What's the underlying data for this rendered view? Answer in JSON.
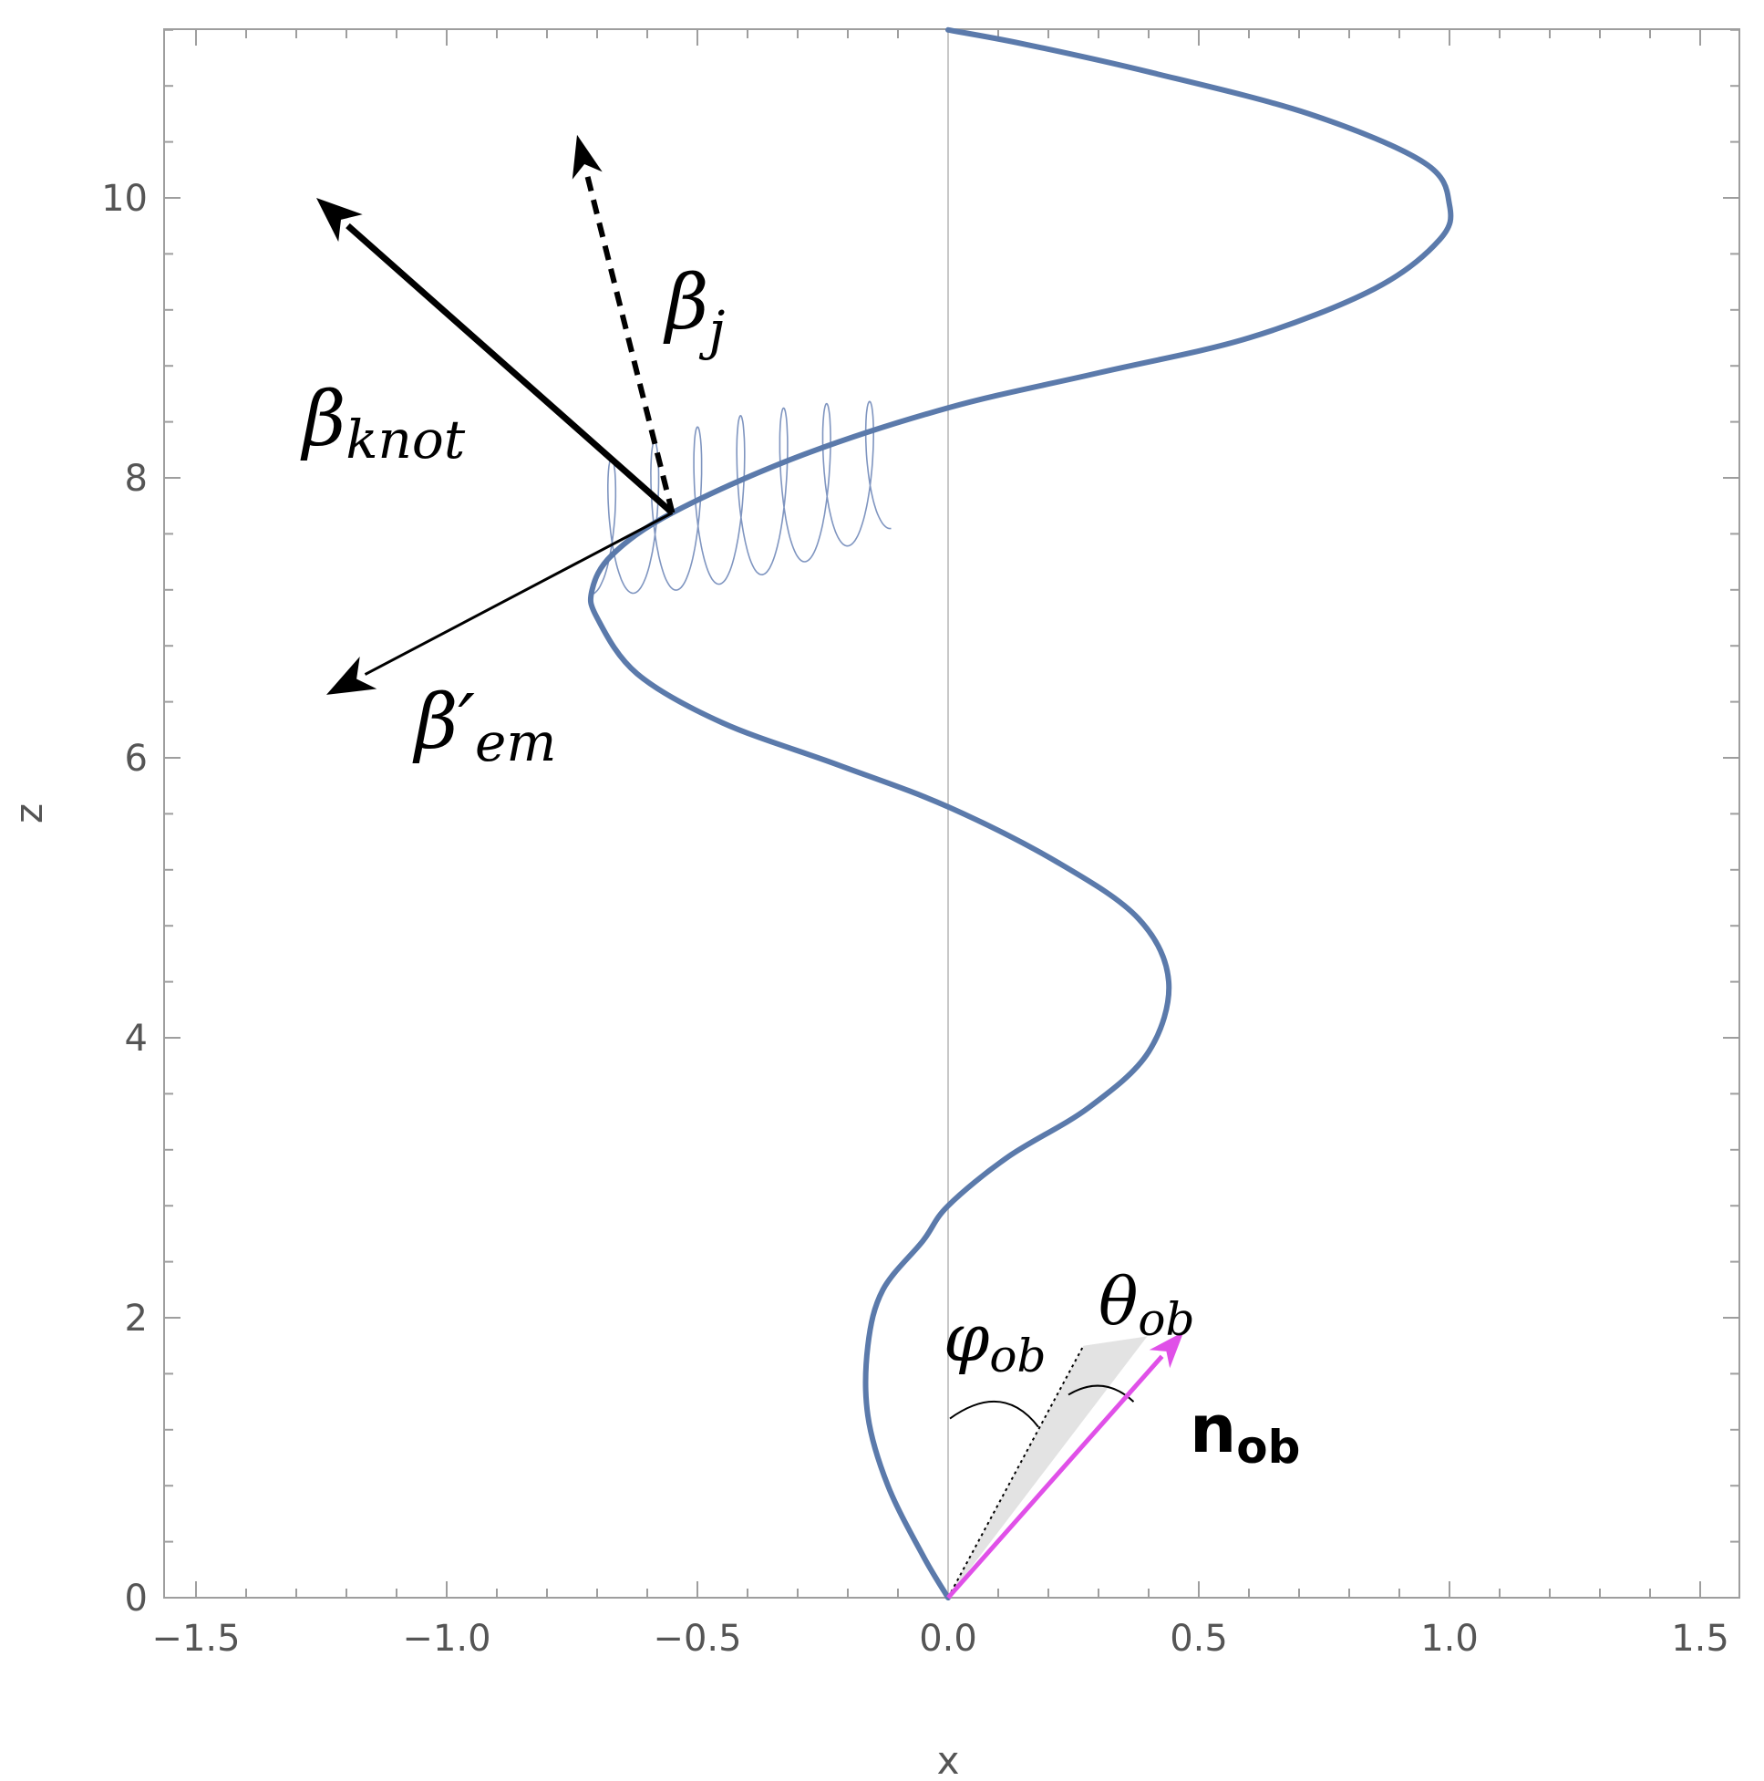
{
  "chart_data": {
    "type": "line",
    "xlabel": "x",
    "ylabel": "z",
    "xlim": [
      -1.5,
      1.5
    ],
    "ylim": [
      0,
      11.2
    ],
    "x_ticks": [
      {
        "value": -1.5,
        "label": "−1.5"
      },
      {
        "value": -1.0,
        "label": "−1.0"
      },
      {
        "value": -0.5,
        "label": "−0.5"
      },
      {
        "value": 0.0,
        "label": "0.0"
      },
      {
        "value": 0.5,
        "label": "0.5"
      },
      {
        "value": 1.0,
        "label": "1.0"
      },
      {
        "value": 1.5,
        "label": "1.5"
      }
    ],
    "y_ticks": [
      {
        "value": 0,
        "label": "0"
      },
      {
        "value": 2,
        "label": "2"
      },
      {
        "value": 4,
        "label": "4"
      },
      {
        "value": 6,
        "label": "6"
      },
      {
        "value": 8,
        "label": "8"
      },
      {
        "value": 10,
        "label": "10"
      }
    ],
    "grid": false,
    "series": [
      {
        "color": "#5b7aab",
        "points": [
          [
            0.0,
            0.0
          ],
          [
            -0.05,
            0.3
          ],
          [
            -0.12,
            0.8
          ],
          [
            -0.16,
            1.3
          ],
          [
            -0.16,
            1.8
          ],
          [
            -0.13,
            2.2
          ],
          [
            -0.05,
            2.55
          ],
          [
            0.0,
            2.8
          ],
          [
            0.12,
            3.15
          ],
          [
            0.28,
            3.5
          ],
          [
            0.4,
            3.9
          ],
          [
            0.44,
            4.4
          ],
          [
            0.38,
            4.85
          ],
          [
            0.22,
            5.25
          ],
          [
            0.0,
            5.65
          ],
          [
            -0.22,
            5.95
          ],
          [
            -0.45,
            6.25
          ],
          [
            -0.62,
            6.6
          ],
          [
            -0.7,
            7.0
          ],
          [
            -0.71,
            7.2
          ],
          [
            -0.67,
            7.45
          ],
          [
            -0.55,
            7.75
          ],
          [
            -0.3,
            8.15
          ],
          [
            0.0,
            8.5
          ],
          [
            0.3,
            8.75
          ],
          [
            0.6,
            9.0
          ],
          [
            0.85,
            9.35
          ],
          [
            0.98,
            9.7
          ],
          [
            1.0,
            9.95
          ],
          [
            0.95,
            10.25
          ],
          [
            0.72,
            10.6
          ],
          [
            0.4,
            10.9
          ],
          [
            0.15,
            11.1
          ],
          [
            0.0,
            11.2
          ]
        ]
      }
    ],
    "annotations": [
      {
        "label": "β",
        "sub": "knot",
        "arrow_from": [
          -0.55,
          7.75
        ],
        "arrow_to": [
          -1.26,
          10.0
        ],
        "style": "solid-thick",
        "color": "#000000"
      },
      {
        "label": "β",
        "sub": "j",
        "arrow_from": [
          -0.55,
          7.75
        ],
        "arrow_to": [
          -0.74,
          10.45
        ],
        "style": "dashed",
        "color": "#000000"
      },
      {
        "label": "β′",
        "sub": "em",
        "arrow_from": [
          -0.55,
          7.75
        ],
        "arrow_to": [
          -1.24,
          6.45
        ],
        "style": "solid-thin",
        "color": "#000000"
      },
      {
        "label": "n",
        "sub": "ob",
        "arrow_from": [
          0.0,
          0.0
        ],
        "arrow_to": [
          0.47,
          1.9
        ],
        "style": "solid",
        "color": "#e050e8"
      },
      {
        "label": "φ",
        "sub": "ob"
      },
      {
        "label": "θ",
        "sub": "ob"
      }
    ]
  }
}
